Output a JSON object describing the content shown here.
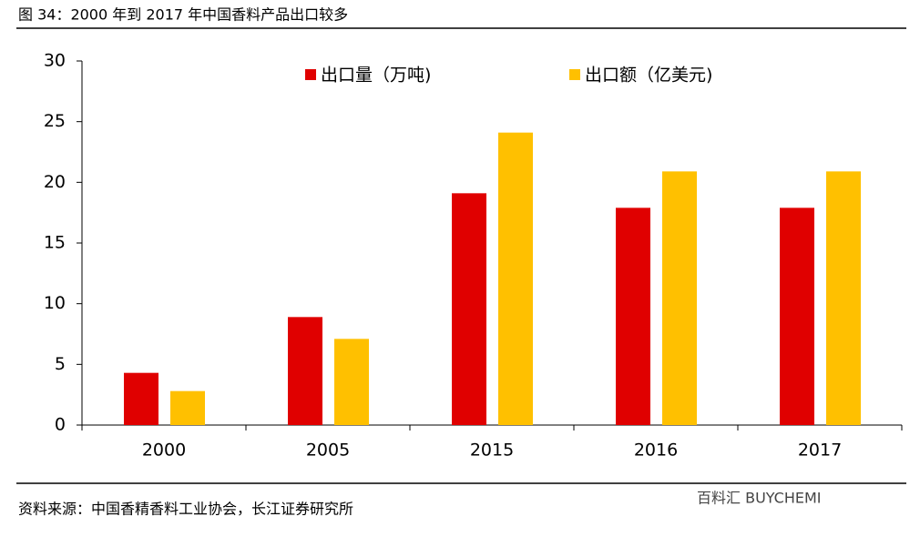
{
  "chart_data": {
    "type": "bar",
    "title": "图 34：2000 年到 2017 年中国香料产品出口较多",
    "source": "资料来源：中国香精香料工业协会，长江证券研究所",
    "watermark": "百料汇 BUYCHEMI",
    "categories": [
      "2000",
      "2005",
      "2015",
      "2016",
      "2017"
    ],
    "series": [
      {
        "name": "出口量（万吨)",
        "color": "#e00000",
        "values": [
          4.3,
          8.9,
          19.1,
          17.9,
          17.9
        ]
      },
      {
        "name": "出口额（亿美元)",
        "color": "#ffc000",
        "values": [
          2.8,
          7.1,
          24.1,
          20.9,
          20.9
        ]
      }
    ],
    "ylim": [
      0,
      30
    ],
    "yticks": [
      0,
      5,
      10,
      15,
      20,
      25,
      30
    ],
    "grid": false,
    "legend": "top"
  }
}
